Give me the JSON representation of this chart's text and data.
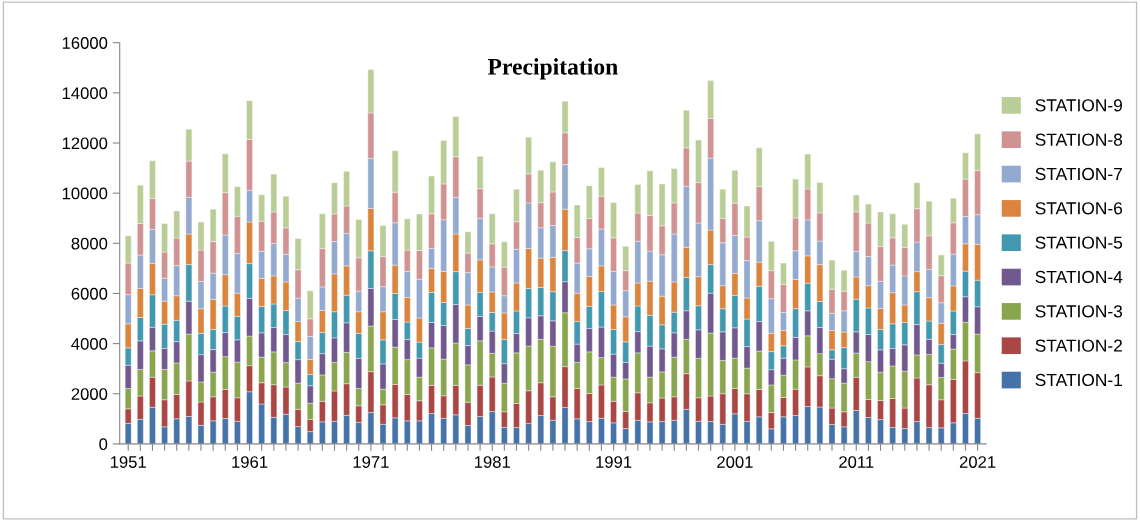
{
  "chart_data": {
    "type": "bar",
    "title": "Precipitation",
    "stacked": true,
    "legend": "right",
    "grid": false,
    "categories": [
      "1951",
      null,
      null,
      null,
      null,
      null,
      null,
      null,
      null,
      null,
      "1961",
      null,
      null,
      null,
      null,
      null,
      null,
      null,
      null,
      null,
      "1971",
      null,
      null,
      null,
      null,
      null,
      null,
      null,
      null,
      null,
      "1981",
      null,
      null,
      null,
      null,
      null,
      null,
      null,
      null,
      null,
      "1991",
      null,
      null,
      null,
      null,
      null,
      null,
      null,
      null,
      null,
      "2001",
      null,
      null,
      null,
      null,
      null,
      null,
      null,
      null,
      null,
      "2011",
      null,
      null,
      null,
      null,
      null,
      null,
      null,
      null,
      null,
      "2021"
    ],
    "ylim": [
      0,
      16000
    ],
    "yticks": [
      0,
      2000,
      4000,
      6000,
      8000,
      10000,
      12000,
      14000,
      16000
    ],
    "series": [
      {
        "name": "STATION-1",
        "color": "#4572a7",
        "values": [
          820,
          980,
          1460,
          680,
          1000,
          1090,
          740,
          920,
          1010,
          900,
          2080,
          1590,
          1060,
          1180,
          690,
          490,
          880,
          900,
          1140,
          860,
          1250,
          780,
          1040,
          920,
          920,
          1210,
          1020,
          1160,
          730,
          1090,
          1290,
          660,
          650,
          810,
          1130,
          940,
          1450,
          1000,
          890,
          1020,
          840,
          610,
          940,
          880,
          890,
          940,
          1380,
          900,
          890,
          780,
          1200,
          900,
          1080,
          600,
          1080,
          1130,
          1490,
          1470,
          770,
          680,
          1330,
          1050,
          970,
          650,
          610,
          890,
          650,
          640,
          840,
          1210,
          1020
        ]
      },
      {
        "name": "STATION-2",
        "color": "#aa4643",
        "values": [
          580,
          930,
          1200,
          1080,
          970,
          1420,
          930,
          960,
          1160,
          940,
          1040,
          850,
          1300,
          1090,
          690,
          490,
          820,
          1210,
          1260,
          660,
          1630,
          780,
          1330,
          1050,
          800,
          1120,
          900,
          1170,
          930,
          1250,
          1380,
          620,
          960,
          1310,
          1310,
          940,
          1630,
          1210,
          1120,
          1330,
          860,
          680,
          1100,
          760,
          940,
          940,
          1420,
          940,
          1020,
          1220,
          1010,
          1100,
          1090,
          650,
          770,
          1050,
          1580,
          1250,
          660,
          600,
          1330,
          720,
          760,
          1160,
          820,
          1740,
          1710,
          1120,
          1730,
          2100,
          1820
        ]
      },
      {
        "name": "STATION-3",
        "color": "#89a54e",
        "values": [
          810,
          1060,
          1050,
          1210,
          1260,
          1870,
          800,
          980,
          1310,
          1420,
          1180,
          1020,
          1310,
          970,
          1040,
          640,
          1050,
          1140,
          1250,
          690,
          1820,
          620,
          1490,
          1390,
          940,
          1500,
          1460,
          1690,
          1490,
          1770,
          940,
          1140,
          2020,
          1780,
          1730,
          2010,
          2150,
          1040,
          1660,
          1090,
          960,
          1300,
          1590,
          1020,
          1040,
          1580,
          1370,
          1570,
          2510,
          1330,
          1210,
          1020,
          1530,
          1100,
          890,
          1170,
          1240,
          880,
          1170,
          1140,
          960,
          1510,
          1130,
          1300,
          1470,
          920,
          1210,
          890,
          1210,
          1540,
          1540
        ]
      },
      {
        "name": "STATION-4",
        "color": "#71588f",
        "values": [
          930,
          1140,
          940,
          840,
          850,
          1310,
          1090,
          900,
          960,
          890,
          1500,
          970,
          970,
          1120,
          940,
          700,
          850,
          980,
          1180,
          1200,
          1500,
          1010,
          1100,
          800,
          760,
          1010,
          1340,
          1540,
          770,
          970,
          890,
          780,
          770,
          1130,
          940,
          1020,
          1240,
          730,
          930,
          1220,
          920,
          660,
          850,
          1240,
          920,
          970,
          1140,
          1140,
          1590,
          1140,
          1210,
          860,
          1180,
          610,
          680,
          900,
          1000,
          1040,
          780,
          580,
          850,
          1080,
          890,
          700,
          1050,
          1210,
          600,
          570,
          580,
          1020,
          1090
        ]
      },
      {
        "name": "STATION-5",
        "color": "#4198af",
        "values": [
          690,
          930,
          1300,
          960,
          850,
          1460,
          850,
          800,
          1060,
          930,
          1390,
          1050,
          940,
          960,
          720,
          450,
          840,
          1040,
          1100,
          1000,
          1500,
          960,
          1040,
          700,
          640,
          1200,
          920,
          1310,
          680,
          960,
          740,
          960,
          900,
          1170,
          1130,
          1160,
          1240,
          900,
          880,
          1420,
          980,
          820,
          1020,
          1220,
          960,
          820,
          1330,
          960,
          1140,
          920,
          1290,
          1100,
          1410,
          720,
          490,
          1140,
          1100,
          1040,
          370,
          840,
          1300,
          1060,
          810,
          980,
          890,
          1310,
          730,
          740,
          940,
          1020,
          1060
        ]
      },
      {
        "name": "STATION-6",
        "color": "#db843d",
        "values": [
          960,
          1160,
          1250,
          920,
          980,
          1220,
          980,
          1200,
          1250,
          930,
          1660,
          1120,
          1120,
          1140,
          800,
          600,
          880,
          1510,
          1170,
          860,
          1690,
          1120,
          1130,
          980,
          960,
          960,
          1240,
          1500,
          940,
          1300,
          820,
          1060,
          1120,
          1590,
          1170,
          1370,
          1650,
          1130,
          1200,
          1020,
          980,
          1000,
          920,
          1370,
          1140,
          1210,
          1200,
          1160,
          1380,
          920,
          880,
          840,
          960,
          730,
          610,
          1170,
          1090,
          1470,
          770,
          620,
          890,
          890,
          840,
          1240,
          700,
          800,
          930,
          850,
          1000,
          1090,
          1430
        ]
      },
      {
        "name": "STATION-7",
        "color": "#93a9cf",
        "values": [
          1160,
          1330,
          1350,
          920,
          1200,
          1460,
          1090,
          1050,
          1580,
          1580,
          1270,
          1080,
          1290,
          1100,
          930,
          920,
          940,
          1290,
          1290,
          820,
          1990,
          1000,
          1690,
          1040,
          1550,
          800,
          2060,
          1460,
          1290,
          1660,
          1000,
          690,
          1340,
          1820,
          1210,
          1270,
          1780,
          1200,
          1100,
          1470,
          1340,
          1040,
          1660,
          1200,
          1650,
          1910,
          2430,
          2140,
          2870,
          1710,
          1510,
          1490,
          1650,
          1380,
          720,
          1140,
          1430,
          940,
          690,
          850,
          1020,
          1160,
          1080,
          1100,
          1160,
          1180,
          1130,
          820,
          1270,
          1090,
          1180
        ]
      },
      {
        "name": "STATION-8",
        "color": "#d19392",
        "values": [
          1260,
          1260,
          1240,
          1040,
          1100,
          1450,
          1250,
          1260,
          1690,
          1490,
          2020,
          1200,
          1260,
          1060,
          1140,
          700,
          1530,
          1100,
          1100,
          1330,
          1820,
          1200,
          1220,
          850,
          1140,
          1380,
          1430,
          1620,
          780,
          1180,
          920,
          1140,
          1100,
          1160,
          1000,
          1340,
          1270,
          1020,
          1210,
          1310,
          1340,
          800,
          1130,
          1420,
          1160,
          1240,
          1540,
          1610,
          1580,
          970,
          1290,
          940,
          1370,
          1120,
          1120,
          1310,
          1240,
          1120,
          960,
          780,
          1570,
          1340,
          1390,
          1090,
          1140,
          1330,
          1340,
          1080,
          1250,
          1490,
          1770
        ]
      },
      {
        "name": "STATION-9",
        "color": "#b9cd96",
        "values": [
          1090,
          1530,
          1500,
          1140,
          1080,
          1270,
          1120,
          1290,
          1550,
          1180,
          1550,
          1060,
          1510,
          1260,
          1240,
          1120,
          1390,
          1250,
          1380,
          1530,
          1730,
          1240,
          1650,
          1250,
          1460,
          1500,
          1730,
          1610,
          850,
          1290,
          1200,
          1010,
          1300,
          1460,
          1290,
          1200,
          1260,
          1300,
          1310,
          1140,
          1410,
          970,
          1140,
          1780,
          1670,
          1370,
          1500,
          1700,
          1510,
          1170,
          1310,
          1240,
          1540,
          1170,
          850,
          1550,
          1390,
          1220,
          1160,
          840,
          680,
          760,
          1380,
          960,
          920,
          1040,
          1380,
          820,
          980,
          1050,
          1460
        ]
      }
    ]
  }
}
